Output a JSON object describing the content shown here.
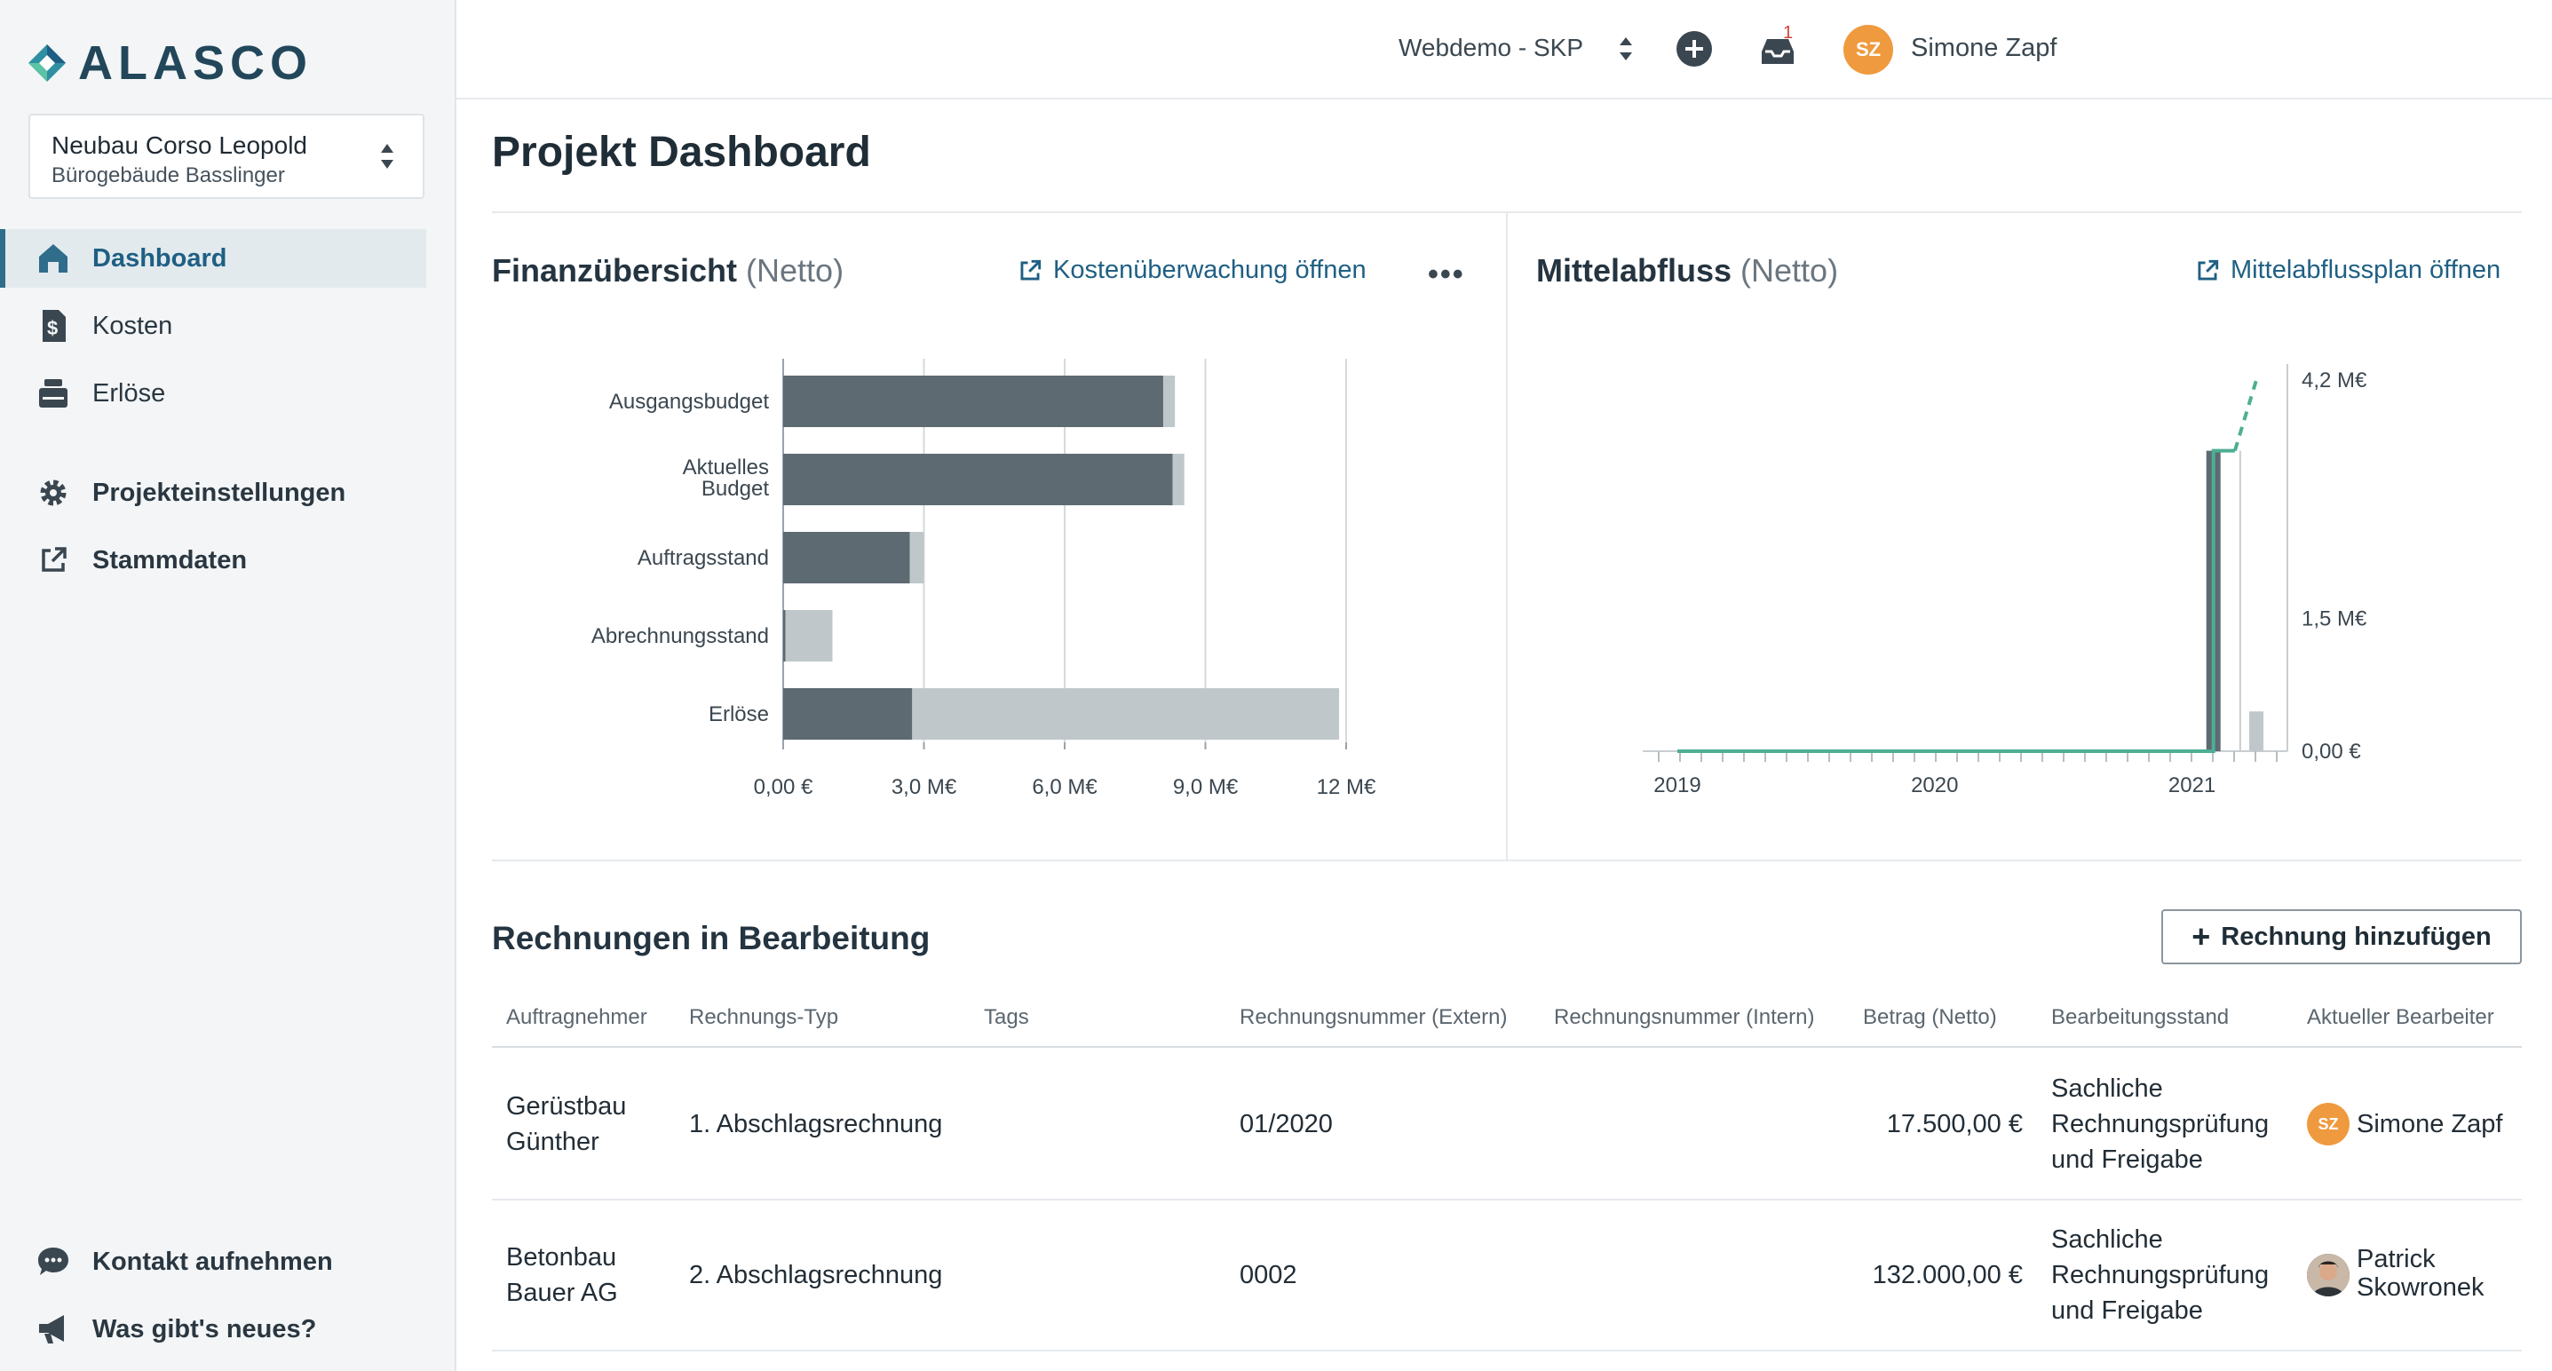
{
  "brand": {
    "name": "ALASCO"
  },
  "project": {
    "name": "Neubau Corso Leopold",
    "subtitle": "Bürogebäude Basslinger"
  },
  "nav": {
    "items": [
      {
        "label": "Dashboard",
        "icon": "home-icon"
      },
      {
        "label": "Kosten",
        "icon": "cost-icon"
      },
      {
        "label": "Erlöse",
        "icon": "cash-register-icon"
      },
      {
        "label": "Projekteinstellungen",
        "icon": "gear-icon"
      },
      {
        "label": "Stammdaten",
        "icon": "external-link-icon"
      }
    ],
    "bottom": [
      {
        "label": "Kontakt aufnehmen",
        "icon": "chat-icon"
      },
      {
        "label": "Was gibt's neues?",
        "icon": "megaphone-icon"
      }
    ]
  },
  "topbar": {
    "workspace": "Webdemo - SKP",
    "notifications_count": "1",
    "user_initials": "SZ",
    "user_name": "Simone Zapf"
  },
  "page": {
    "title": "Projekt Dashboard"
  },
  "finance": {
    "title": "Finanzübersicht",
    "title_suffix": "(Netto)",
    "link": "Kostenüberwachung öffnen",
    "more": "•••"
  },
  "cashflow": {
    "title": "Mittelabfluss",
    "title_suffix": "(Netto)",
    "link": "Mittelabflussplan öffnen"
  },
  "chart_data": [
    {
      "type": "bar",
      "orientation": "horizontal",
      "categories": [
        "Ausgangsbudget",
        "Aktuelles Budget",
        "Auftragsstand",
        "Abrechnungsstand",
        "Erlöse"
      ],
      "series": [
        {
          "values": [
            8.1,
            8.3,
            2.7,
            0.05,
            2.75
          ],
          "color": "#5d6a72"
        },
        {
          "values": [
            0.25,
            0.25,
            0.3,
            1.0,
            9.1
          ],
          "color": "#c0c7cb"
        }
      ],
      "xticks": [
        "0,00 €",
        "3,0 M€",
        "6,0 M€",
        "9,0 M€",
        "12 M€"
      ],
      "xlim": [
        0,
        12
      ],
      "grid": true
    },
    {
      "type": "line",
      "x_ticks": [
        "2019",
        "2020",
        "2021"
      ],
      "y_ticks": [
        "0,00 €",
        "1,5 M€",
        "4,2 M€"
      ],
      "y_axis_position": "right",
      "series": [
        {
          "style": "solid",
          "color": "#4dae93",
          "x": [
            "2019-01",
            "2020-01",
            "2021-01",
            "2021-02",
            "2021-02",
            "2021-03"
          ],
          "y": [
            0.0,
            0.0,
            0.0,
            0.0,
            3.4,
            3.4
          ]
        },
        {
          "style": "dashed",
          "color": "#4dae93",
          "x": [
            "2021-03",
            "2021-04"
          ],
          "y": [
            3.4,
            4.2
          ]
        }
      ],
      "bars": [
        {
          "x": "2021-02",
          "y": 3.4,
          "color": "#5d6a72"
        },
        {
          "x": "2021-04",
          "y": 0.45,
          "color": "#c0c7cb"
        }
      ]
    }
  ],
  "invoices": {
    "title": "Rechnungen in Bearbeitung",
    "add_button": "Rechnung hinzufügen",
    "columns": [
      "Auftragnehmer",
      "Rechnungs-Typ",
      "Tags",
      "Rechnungsnummer (Extern)",
      "Rechnungsnummer (Intern)",
      "Betrag (Netto)",
      "Bearbeitungsstand",
      "Aktueller Bearbeiter"
    ],
    "rows": [
      {
        "contractor_l1": "Gerüstbau",
        "contractor_l2": "Günther",
        "type": "1. Abschlagsrechnung",
        "tags": "",
        "ext_number": "01/2020",
        "int_number": "",
        "amount": "17.500,00 €",
        "status_l1": "Sachliche",
        "status_l2": "Rechnungsprüfung",
        "status_l3": "und Freigabe",
        "editor_initials": "SZ",
        "editor": "Simone Zapf"
      },
      {
        "contractor_l1": "Betonbau",
        "contractor_l2": "Bauer AG",
        "type": "2. Abschlagsrechnung",
        "tags": "",
        "ext_number": "0002",
        "int_number": "",
        "amount": "132.000,00 €",
        "status_l1": "Sachliche",
        "status_l2": "Rechnungsprüfung",
        "status_l3": "und Freigabe",
        "editor_l1": "Patrick",
        "editor_l2": "Skowronek"
      }
    ]
  }
}
